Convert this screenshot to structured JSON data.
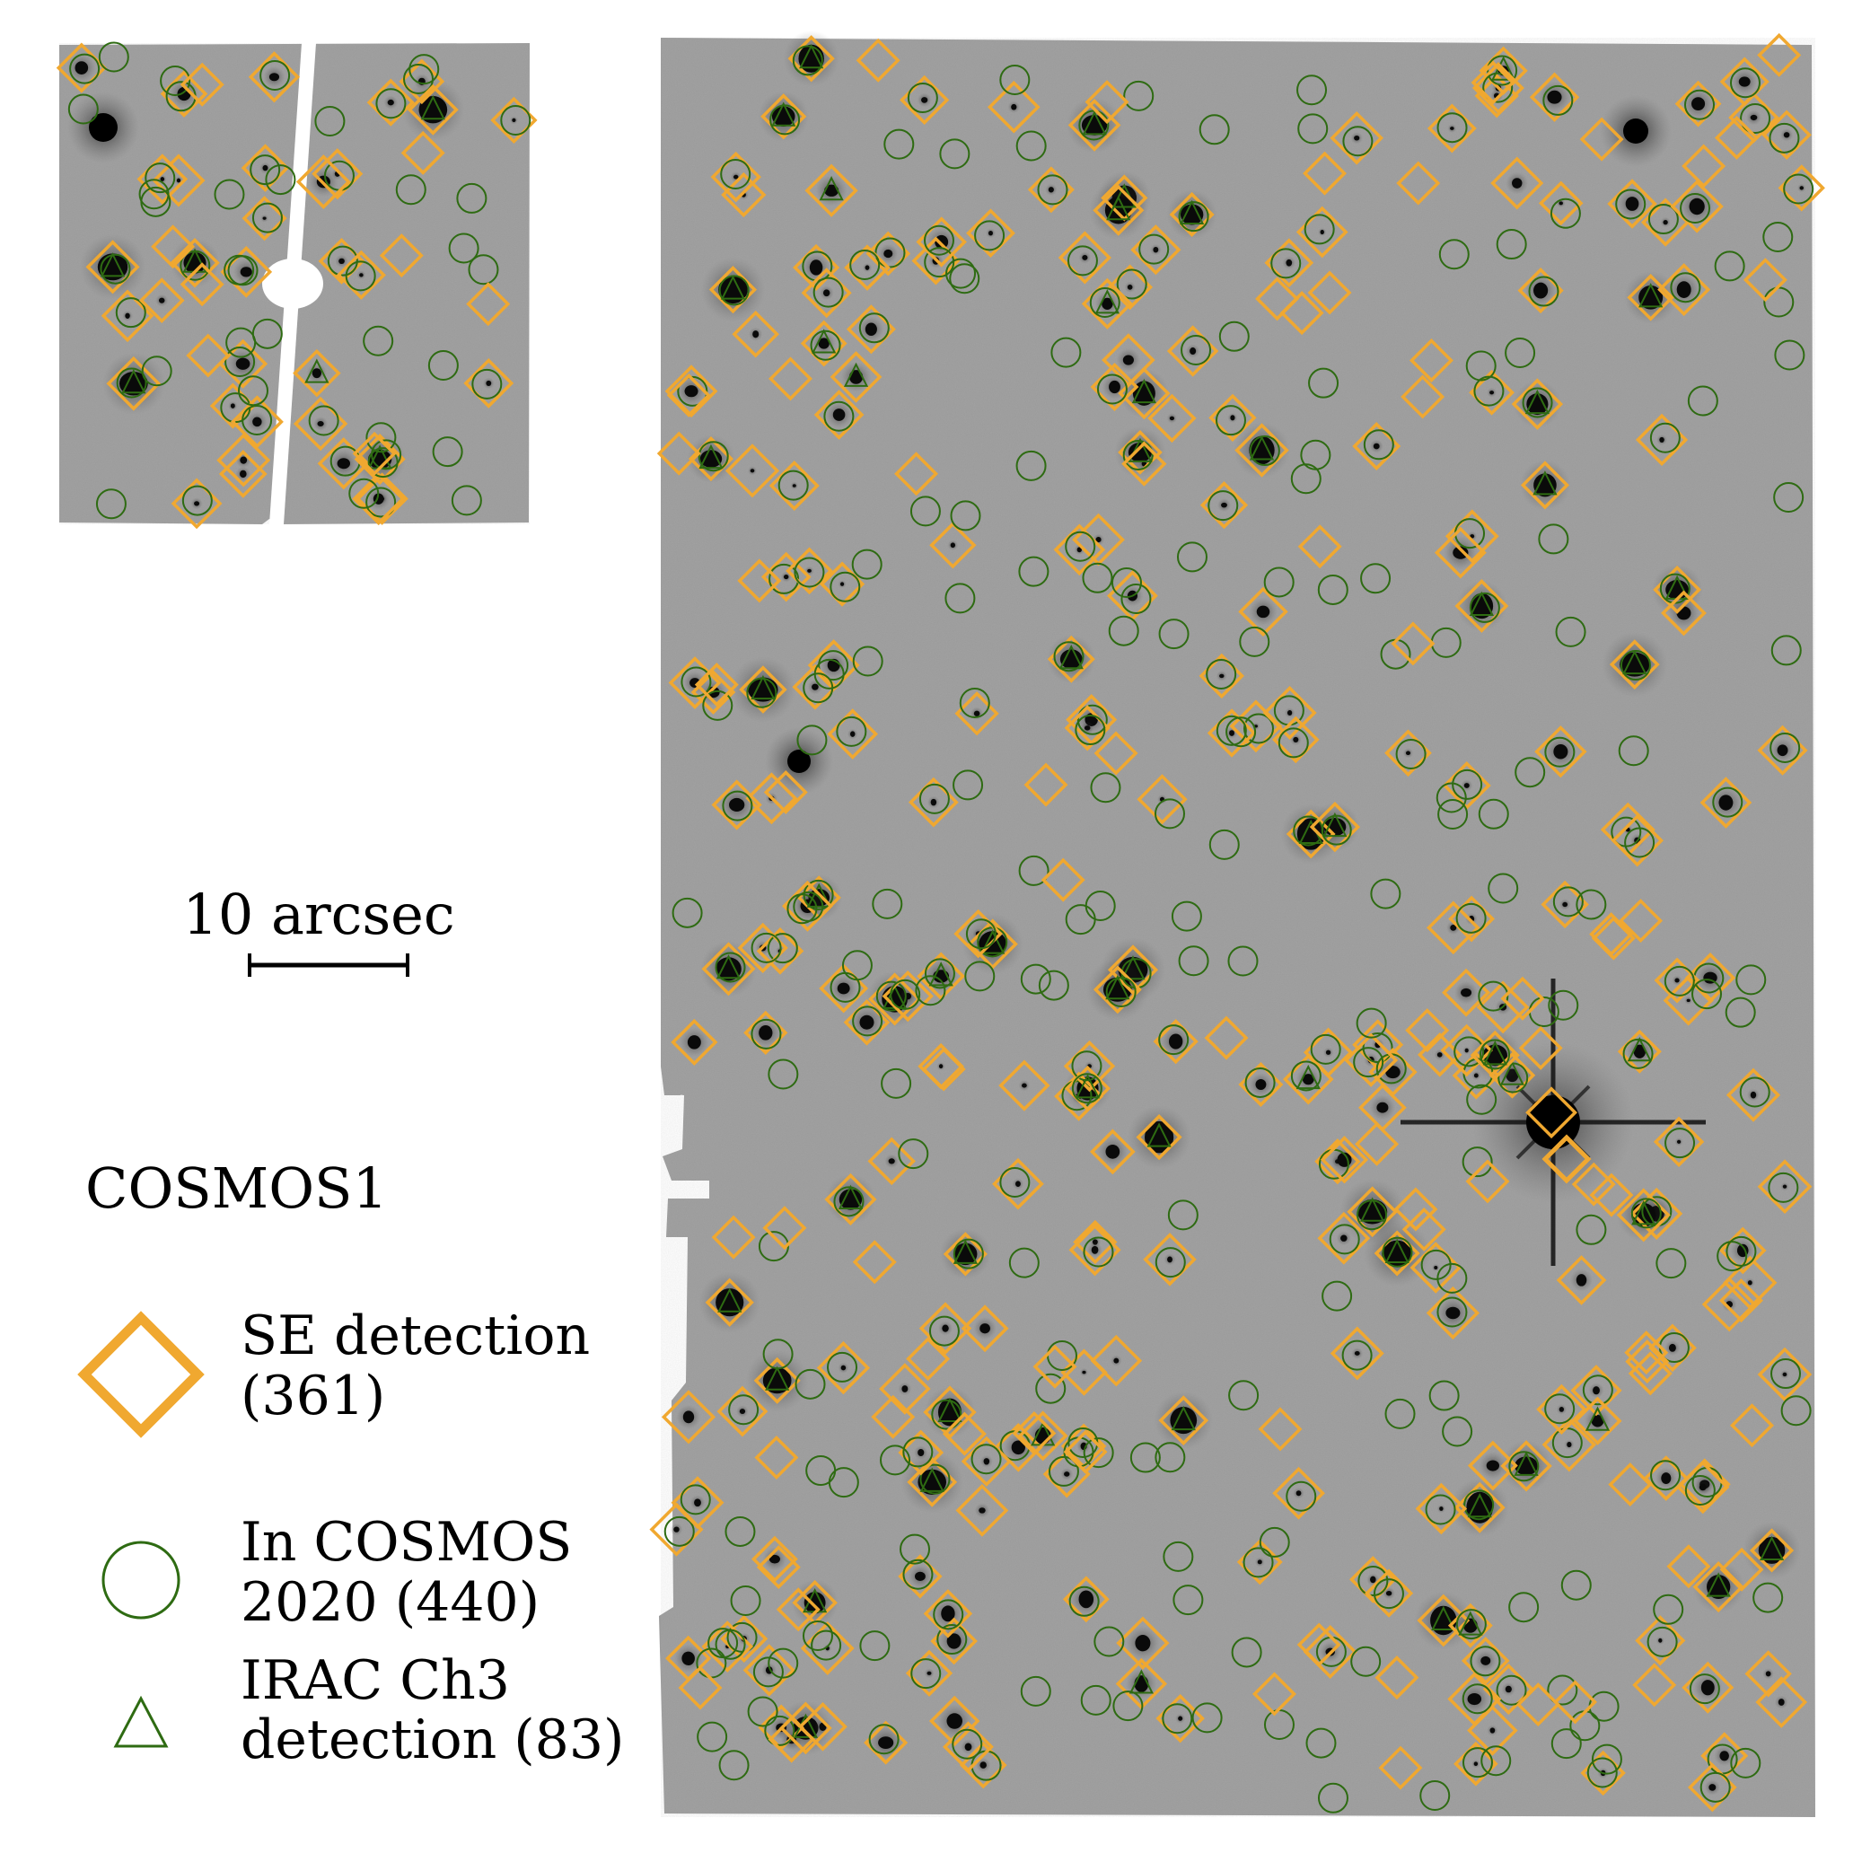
{
  "scale_bar": {
    "label": "10 arcsec"
  },
  "legend": {
    "field_name": "COSMOS1",
    "entries": [
      {
        "key": "se",
        "marker": "diamond",
        "line1": "SE detection",
        "line2": "(361)",
        "color": "#F0A830"
      },
      {
        "key": "cosmos2020",
        "marker": "circle",
        "line1": "In COSMOS",
        "line2": "2020 (440)",
        "color": "#2E6B12"
      },
      {
        "key": "irac",
        "marker": "triangle",
        "line1": "IRAC Ch3",
        "line2": "detection (83)",
        "color": "#2E6B12"
      }
    ]
  },
  "colors": {
    "background": "#ffffff",
    "image_gray": "#9a9a9a",
    "source_core": "#0a0a0a",
    "se_marker": "#F0A830",
    "cosmos2020_marker": "#2E6B12",
    "irac_marker": "#2E6B12",
    "scale_bar": "#000000"
  }
}
